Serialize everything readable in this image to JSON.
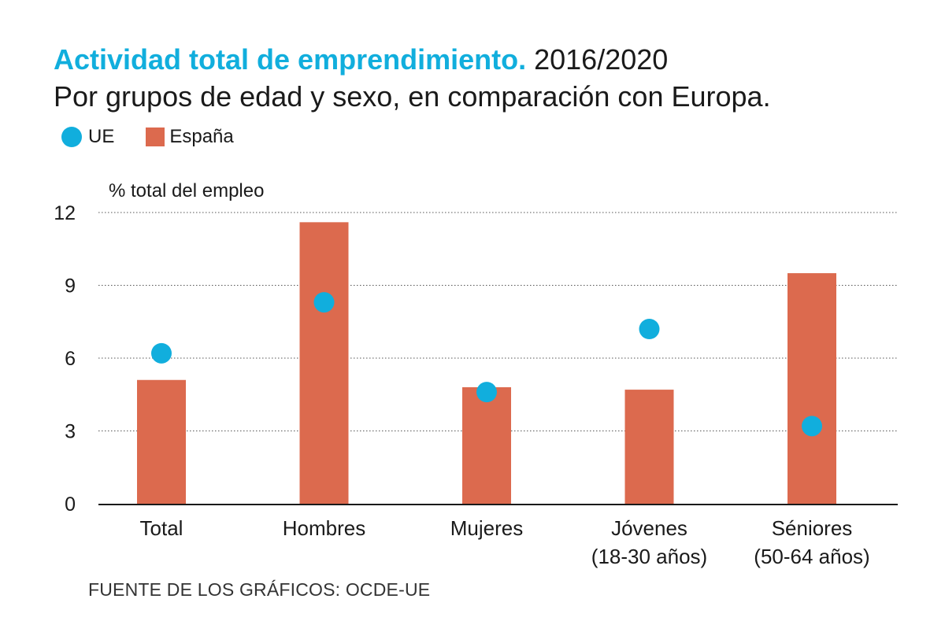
{
  "header": {
    "title_lead": "Actividad total de emprendimiento.",
    "title_year": "2016/2020",
    "subtitle": "Por grupos de edad y sexo, en comparación con Europa."
  },
  "legend": [
    {
      "label": "UE",
      "shape": "circle",
      "color": "#11aedd"
    },
    {
      "label": "España",
      "shape": "square",
      "color": "#dc6a4e"
    }
  ],
  "source": "FUENTE DE LOS GRÁFICOS: OCDE-UE",
  "colors": {
    "accent": "#11aedd",
    "bar": "#dc6a4e",
    "dot": "#11aedd",
    "gridline": "#555555",
    "axis": "#1a1a1a"
  },
  "chart_data": {
    "type": "bar",
    "title": "Actividad total de emprendimiento. 2016/2020",
    "subtitle": "Por grupos de edad y sexo, en comparación con Europa.",
    "ylabel": "% total del empleo",
    "xlabel": "",
    "ylim": [
      0,
      12
    ],
    "yticks": [
      0,
      3,
      6,
      9,
      12
    ],
    "grid": "horizontal dotted",
    "legend_position": "top-left",
    "categories": [
      [
        "Total"
      ],
      [
        "Hombres"
      ],
      [
        "Mujeres"
      ],
      [
        "Jóvenes",
        "(18-30 años)"
      ],
      [
        "Séniores",
        "(50-64 años)"
      ]
    ],
    "series": [
      {
        "name": "España",
        "mark": "bar",
        "values": [
          5.1,
          11.6,
          4.8,
          4.7,
          9.5
        ]
      },
      {
        "name": "UE",
        "mark": "dot",
        "values": [
          6.2,
          8.3,
          4.6,
          7.2,
          3.2
        ]
      }
    ]
  }
}
